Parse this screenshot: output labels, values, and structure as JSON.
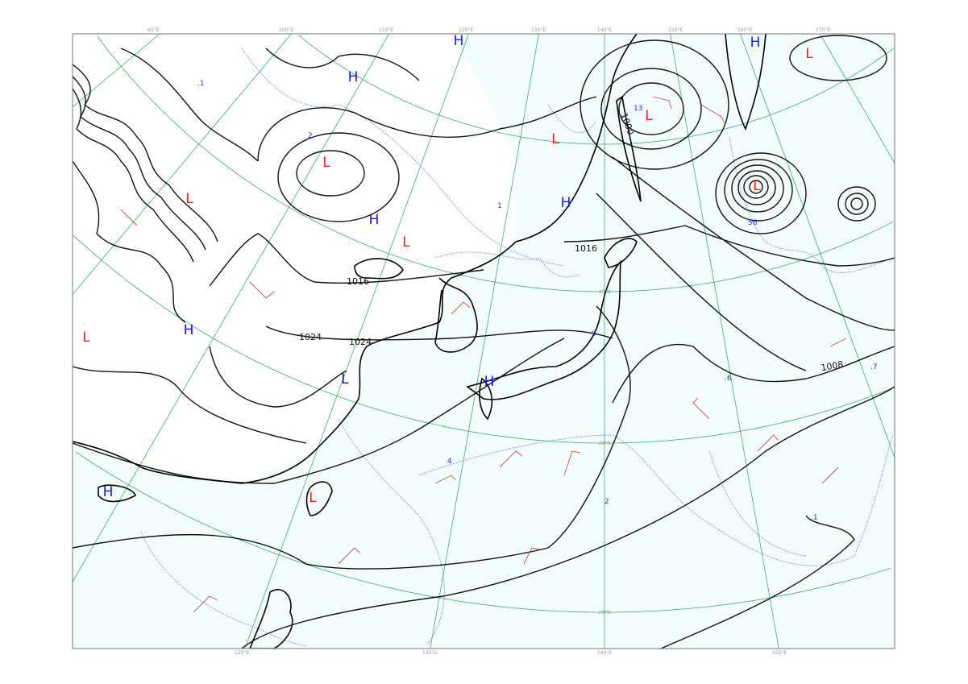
{
  "map": {
    "longitude_labels_top": [
      "90°E",
      "100°E",
      "110°E",
      "120°E",
      "130°E",
      "140°E",
      "150°E",
      "160°E",
      "170°E"
    ],
    "longitude_labels_bottom": [
      "120°E",
      "130°E",
      "140°E",
      "150°E"
    ],
    "latitude_labels": [
      "40°N",
      "30°N",
      "20°N"
    ],
    "pressure_centers": [
      {
        "symbol": "H",
        "color": "#1a1aff"
      },
      {
        "symbol": "H",
        "color": "#1a1aff"
      },
      {
        "symbol": "H",
        "color": "#1a1aff"
      },
      {
        "symbol": "H",
        "color": "#1a1aff"
      },
      {
        "symbol": "H",
        "color": "#1a1aff"
      },
      {
        "symbol": "H",
        "color": "#1a1aff"
      },
      {
        "symbol": "H",
        "color": "#1a1aff"
      },
      {
        "symbol": "H",
        "color": "#1a1aff"
      },
      {
        "symbol": "L",
        "color": "#ff1a1a"
      },
      {
        "symbol": "L",
        "color": "#ff1a1a"
      },
      {
        "symbol": "L",
        "color": "#ff1a1a"
      },
      {
        "symbol": "L",
        "color": "#ff1a1a"
      },
      {
        "symbol": "L",
        "color": "#ff1a1a"
      },
      {
        "symbol": "L",
        "color": "#ff1a1a"
      },
      {
        "symbol": "L",
        "color": "#ff1a1a"
      },
      {
        "symbol": "L",
        "color": "#ff1a1a"
      },
      {
        "symbol": "L",
        "color": "#ff1a1a"
      },
      {
        "symbol": "L",
        "color": "#1a1a88"
      }
    ],
    "isobar_labels": [
      "1000",
      "1016",
      "1016",
      "1024",
      "1024",
      "1008"
    ],
    "precip_values": [
      ".1",
      "2",
      "1",
      "13",
      "56",
      "9",
      ".6",
      ".7",
      "2",
      ".1",
      "4"
    ],
    "colors": {
      "isobar": "#111111",
      "coastline": "#000000",
      "graticule": "#3fae6a",
      "wind_barb": "#c0504d",
      "precip_contour": "#6b7cf5",
      "ocean": "#f2fdfc",
      "land": "#ffffff"
    }
  }
}
